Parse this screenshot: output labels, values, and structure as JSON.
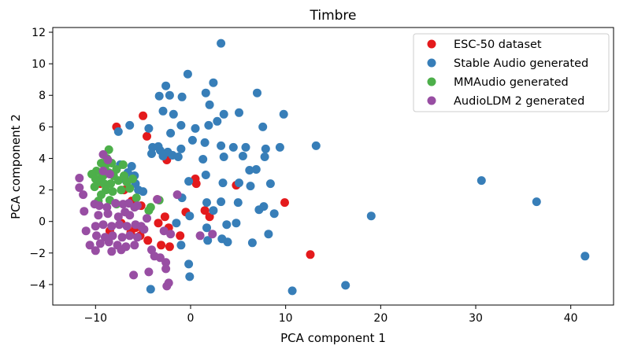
{
  "chart_data": {
    "type": "scatter",
    "title": "Timbre",
    "xlabel": "PCA component 1",
    "ylabel": "PCA component 2",
    "xlim": [
      -14.5,
      44.5
    ],
    "ylim": [
      -5.3,
      12.3
    ],
    "xticks": [
      -10,
      0,
      10,
      20,
      30,
      40
    ],
    "yticks": [
      -4,
      -2,
      0,
      2,
      4,
      6,
      8,
      10,
      12
    ],
    "grid": false,
    "legend_position": "top-right",
    "series": [
      {
        "name": "ESC-50 dataset",
        "color": "#e41a1c",
        "points": [
          [
            -7.8,
            6.0
          ],
          [
            -5.0,
            6.7
          ],
          [
            -4.6,
            5.4
          ],
          [
            -2.5,
            3.9
          ],
          [
            -9.5,
            2.4
          ],
          [
            -7.0,
            2.0
          ],
          [
            -6.2,
            1.3
          ],
          [
            -5.2,
            1.0
          ],
          [
            -3.5,
            1.4
          ],
          [
            -2.7,
            0.3
          ],
          [
            -3.4,
            -0.1
          ],
          [
            -2.3,
            -0.4
          ],
          [
            -5.0,
            -0.5
          ],
          [
            -5.3,
            -0.9
          ],
          [
            -4.5,
            -1.2
          ],
          [
            -3.1,
            -1.5
          ],
          [
            -2.2,
            -1.6
          ],
          [
            -1.1,
            -0.9
          ],
          [
            -0.5,
            0.6
          ],
          [
            0.5,
            2.7
          ],
          [
            0.6,
            2.4
          ],
          [
            1.5,
            0.7
          ],
          [
            2.0,
            0.3
          ],
          [
            4.8,
            2.3
          ],
          [
            9.9,
            1.2
          ],
          [
            12.6,
            -2.1
          ],
          [
            -8.5,
            -0.6
          ],
          [
            -7.3,
            -0.1
          ],
          [
            -6.3,
            -0.7
          ],
          [
            -5.8,
            -0.4
          ]
        ]
      },
      {
        "name": "Stable Audio generated",
        "color": "#377eb8",
        "points": [
          [
            3.2,
            11.3
          ],
          [
            -0.3,
            9.35
          ],
          [
            -2.6,
            8.6
          ],
          [
            2.4,
            8.8
          ],
          [
            -2.2,
            8.0
          ],
          [
            -3.3,
            7.95
          ],
          [
            1.6,
            8.15
          ],
          [
            -0.9,
            7.9
          ],
          [
            7.0,
            8.15
          ],
          [
            -2.9,
            7.0
          ],
          [
            -1.8,
            6.8
          ],
          [
            2.0,
            7.4
          ],
          [
            3.5,
            6.8
          ],
          [
            5.1,
            6.9
          ],
          [
            9.8,
            6.8
          ],
          [
            -6.4,
            6.1
          ],
          [
            -7.6,
            5.7
          ],
          [
            -4.4,
            5.9
          ],
          [
            -1.0,
            6.1
          ],
          [
            0.5,
            5.9
          ],
          [
            1.9,
            6.1
          ],
          [
            2.8,
            6.35
          ],
          [
            7.6,
            6.0
          ],
          [
            -2.1,
            5.6
          ],
          [
            -4.0,
            4.7
          ],
          [
            -3.4,
            4.75
          ],
          [
            -3.2,
            4.5
          ],
          [
            -2.4,
            4.4
          ],
          [
            -4.1,
            4.3
          ],
          [
            -1.9,
            4.2
          ],
          [
            -1.0,
            4.6
          ],
          [
            0.2,
            5.15
          ],
          [
            1.5,
            5.0
          ],
          [
            3.2,
            4.8
          ],
          [
            4.5,
            4.7
          ],
          [
            5.8,
            4.7
          ],
          [
            7.9,
            4.6
          ],
          [
            9.4,
            4.7
          ],
          [
            13.2,
            4.8
          ],
          [
            -2.9,
            4.15
          ],
          [
            -1.3,
            4.1
          ],
          [
            1.3,
            3.95
          ],
          [
            3.5,
            4.1
          ],
          [
            5.5,
            4.15
          ],
          [
            7.8,
            4.1
          ],
          [
            -7.4,
            3.6
          ],
          [
            -6.2,
            3.5
          ],
          [
            -5.8,
            2.4
          ],
          [
            -5.5,
            2.0
          ],
          [
            -5.0,
            1.9
          ],
          [
            -6.8,
            2.6
          ],
          [
            -0.2,
            2.55
          ],
          [
            1.6,
            2.95
          ],
          [
            3.4,
            2.45
          ],
          [
            5.1,
            2.45
          ],
          [
            6.3,
            2.25
          ],
          [
            8.4,
            2.4
          ],
          [
            6.2,
            3.25
          ],
          [
            6.9,
            3.3
          ],
          [
            -0.9,
            1.5
          ],
          [
            1.7,
            1.2
          ],
          [
            3.2,
            1.25
          ],
          [
            5.0,
            1.2
          ],
          [
            -0.1,
            0.35
          ],
          [
            2.4,
            0.7
          ],
          [
            7.2,
            0.75
          ],
          [
            7.7,
            0.95
          ],
          [
            8.8,
            0.5
          ],
          [
            19.0,
            0.35
          ],
          [
            30.6,
            2.6
          ],
          [
            36.4,
            1.25
          ],
          [
            -1.5,
            -0.1
          ],
          [
            1.7,
            -0.4
          ],
          [
            3.8,
            -0.2
          ],
          [
            4.8,
            -0.1
          ],
          [
            1.8,
            -1.2
          ],
          [
            3.3,
            -1.1
          ],
          [
            3.9,
            -1.3
          ],
          [
            6.5,
            -1.35
          ],
          [
            8.2,
            -0.8
          ],
          [
            -1.0,
            -1.5
          ],
          [
            -0.2,
            -2.7
          ],
          [
            -0.1,
            -3.5
          ],
          [
            -4.2,
            -4.3
          ],
          [
            10.7,
            -4.4
          ],
          [
            16.3,
            -4.05
          ],
          [
            41.5,
            -2.2
          ],
          [
            -5.9,
            2.9
          ],
          [
            -6.6,
            3.1
          ]
        ]
      },
      {
        "name": "MMAudio generated",
        "color": "#4daf4a",
        "points": [
          [
            -8.6,
            4.55
          ],
          [
            -8.8,
            4.0
          ],
          [
            -9.4,
            3.7
          ],
          [
            -8.3,
            3.7
          ],
          [
            -9.0,
            3.5
          ],
          [
            -9.9,
            3.2
          ],
          [
            -9.3,
            3.0
          ],
          [
            -8.6,
            3.1
          ],
          [
            -7.8,
            3.3
          ],
          [
            -7.1,
            3.6
          ],
          [
            -8.1,
            2.9
          ],
          [
            -10.4,
            3.0
          ],
          [
            -10.0,
            2.7
          ],
          [
            -9.7,
            2.5
          ],
          [
            -9.1,
            2.4
          ],
          [
            -8.4,
            2.4
          ],
          [
            -7.6,
            2.6
          ],
          [
            -6.7,
            2.5
          ],
          [
            -6.1,
            2.7
          ],
          [
            -8.9,
            2.0
          ],
          [
            -8.2,
            1.9
          ],
          [
            -9.4,
            1.7
          ],
          [
            -7.3,
            2.0
          ],
          [
            -6.4,
            2.1
          ],
          [
            -9.7,
            1.3
          ],
          [
            -8.5,
            1.35
          ],
          [
            -7.8,
            1.1
          ],
          [
            -5.7,
            1.5
          ],
          [
            -3.3,
            1.35
          ],
          [
            -4.2,
            0.9
          ],
          [
            -4.4,
            0.7
          ],
          [
            -10.1,
            2.2
          ],
          [
            -9.2,
            2.9
          ],
          [
            -7.0,
            2.9
          ]
        ]
      },
      {
        "name": "AudioLDM 2 generated",
        "color": "#984ea3",
        "points": [
          [
            -11.7,
            2.75
          ],
          [
            -11.7,
            2.15
          ],
          [
            -11.3,
            1.7
          ],
          [
            -11.2,
            0.65
          ],
          [
            -9.2,
            4.25
          ],
          [
            -8.7,
            3.9
          ],
          [
            -9.2,
            3.2
          ],
          [
            -8.5,
            3.0
          ],
          [
            -10.1,
            1.1
          ],
          [
            -9.6,
            1.0
          ],
          [
            -8.8,
            0.9
          ],
          [
            -7.9,
            1.15
          ],
          [
            -7.1,
            1.1
          ],
          [
            -6.5,
            1.15
          ],
          [
            -5.9,
            0.9
          ],
          [
            -5.6,
            1.0
          ],
          [
            -9.7,
            0.4
          ],
          [
            -8.7,
            0.5
          ],
          [
            -7.6,
            0.3
          ],
          [
            -6.4,
            0.4
          ],
          [
            -10.0,
            -0.3
          ],
          [
            -9.2,
            -0.2
          ],
          [
            -8.3,
            -0.3
          ],
          [
            -7.5,
            -0.2
          ],
          [
            -6.7,
            -0.3
          ],
          [
            -5.8,
            -0.2
          ],
          [
            -11.0,
            -0.6
          ],
          [
            -9.9,
            -0.9
          ],
          [
            -9.0,
            -1.0
          ],
          [
            -8.2,
            -0.9
          ],
          [
            -7.2,
            -1.0
          ],
          [
            -6.4,
            -0.9
          ],
          [
            -5.6,
            -1.0
          ],
          [
            -10.6,
            -1.5
          ],
          [
            -9.5,
            -1.4
          ],
          [
            -8.6,
            -1.3
          ],
          [
            -7.7,
            -1.5
          ],
          [
            -6.8,
            -1.6
          ],
          [
            -5.9,
            -1.5
          ],
          [
            -10.0,
            -1.85
          ],
          [
            -8.3,
            -1.9
          ],
          [
            -7.3,
            -1.8
          ],
          [
            -3.5,
            1.4
          ],
          [
            -2.8,
            -0.6
          ],
          [
            -2.1,
            -0.8
          ],
          [
            -1.4,
            1.7
          ],
          [
            1.0,
            -0.9
          ],
          [
            2.3,
            -0.8
          ],
          [
            -4.1,
            -1.8
          ],
          [
            -3.8,
            -2.2
          ],
          [
            -3.2,
            -2.3
          ],
          [
            -2.6,
            -2.6
          ],
          [
            -4.4,
            -3.2
          ],
          [
            -2.6,
            -3.0
          ],
          [
            -2.5,
            -4.1
          ],
          [
            -2.3,
            -3.9
          ],
          [
            -6.0,
            -3.4
          ],
          [
            -4.6,
            0.2
          ],
          [
            -5.2,
            -0.3
          ],
          [
            -6.9,
            0.6
          ],
          [
            -4.9,
            -0.5
          ]
        ]
      }
    ]
  }
}
